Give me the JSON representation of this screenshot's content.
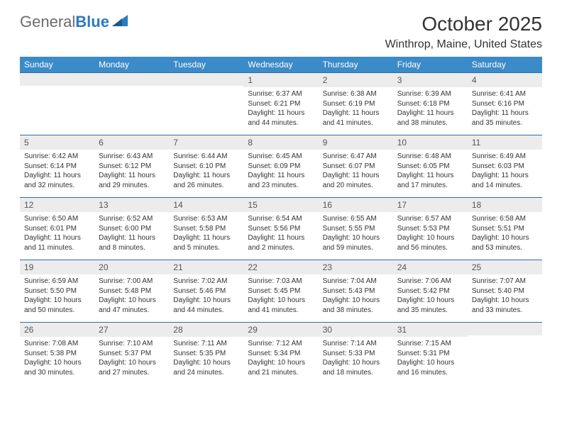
{
  "logo": {
    "text1": "General",
    "text2": "Blue"
  },
  "title": "October 2025",
  "location": "Winthrop, Maine, United States",
  "colors": {
    "header_bg": "#3b8bc8",
    "header_border": "#2b6fa3",
    "daynum_bg": "#ececec",
    "logo_gray": "#6b6b6b",
    "logo_blue": "#2b7bbd"
  },
  "day_names": [
    "Sunday",
    "Monday",
    "Tuesday",
    "Wednesday",
    "Thursday",
    "Friday",
    "Saturday"
  ],
  "weeks": [
    [
      {
        "n": "",
        "lines": []
      },
      {
        "n": "",
        "lines": []
      },
      {
        "n": "",
        "lines": []
      },
      {
        "n": "1",
        "lines": [
          "Sunrise: 6:37 AM",
          "Sunset: 6:21 PM",
          "Daylight: 11 hours and 44 minutes."
        ]
      },
      {
        "n": "2",
        "lines": [
          "Sunrise: 6:38 AM",
          "Sunset: 6:19 PM",
          "Daylight: 11 hours and 41 minutes."
        ]
      },
      {
        "n": "3",
        "lines": [
          "Sunrise: 6:39 AM",
          "Sunset: 6:18 PM",
          "Daylight: 11 hours and 38 minutes."
        ]
      },
      {
        "n": "4",
        "lines": [
          "Sunrise: 6:41 AM",
          "Sunset: 6:16 PM",
          "Daylight: 11 hours and 35 minutes."
        ]
      }
    ],
    [
      {
        "n": "5",
        "lines": [
          "Sunrise: 6:42 AM",
          "Sunset: 6:14 PM",
          "Daylight: 11 hours and 32 minutes."
        ]
      },
      {
        "n": "6",
        "lines": [
          "Sunrise: 6:43 AM",
          "Sunset: 6:12 PM",
          "Daylight: 11 hours and 29 minutes."
        ]
      },
      {
        "n": "7",
        "lines": [
          "Sunrise: 6:44 AM",
          "Sunset: 6:10 PM",
          "Daylight: 11 hours and 26 minutes."
        ]
      },
      {
        "n": "8",
        "lines": [
          "Sunrise: 6:45 AM",
          "Sunset: 6:09 PM",
          "Daylight: 11 hours and 23 minutes."
        ]
      },
      {
        "n": "9",
        "lines": [
          "Sunrise: 6:47 AM",
          "Sunset: 6:07 PM",
          "Daylight: 11 hours and 20 minutes."
        ]
      },
      {
        "n": "10",
        "lines": [
          "Sunrise: 6:48 AM",
          "Sunset: 6:05 PM",
          "Daylight: 11 hours and 17 minutes."
        ]
      },
      {
        "n": "11",
        "lines": [
          "Sunrise: 6:49 AM",
          "Sunset: 6:03 PM",
          "Daylight: 11 hours and 14 minutes."
        ]
      }
    ],
    [
      {
        "n": "12",
        "lines": [
          "Sunrise: 6:50 AM",
          "Sunset: 6:01 PM",
          "Daylight: 11 hours and 11 minutes."
        ]
      },
      {
        "n": "13",
        "lines": [
          "Sunrise: 6:52 AM",
          "Sunset: 6:00 PM",
          "Daylight: 11 hours and 8 minutes."
        ]
      },
      {
        "n": "14",
        "lines": [
          "Sunrise: 6:53 AM",
          "Sunset: 5:58 PM",
          "Daylight: 11 hours and 5 minutes."
        ]
      },
      {
        "n": "15",
        "lines": [
          "Sunrise: 6:54 AM",
          "Sunset: 5:56 PM",
          "Daylight: 11 hours and 2 minutes."
        ]
      },
      {
        "n": "16",
        "lines": [
          "Sunrise: 6:55 AM",
          "Sunset: 5:55 PM",
          "Daylight: 10 hours and 59 minutes."
        ]
      },
      {
        "n": "17",
        "lines": [
          "Sunrise: 6:57 AM",
          "Sunset: 5:53 PM",
          "Daylight: 10 hours and 56 minutes."
        ]
      },
      {
        "n": "18",
        "lines": [
          "Sunrise: 6:58 AM",
          "Sunset: 5:51 PM",
          "Daylight: 10 hours and 53 minutes."
        ]
      }
    ],
    [
      {
        "n": "19",
        "lines": [
          "Sunrise: 6:59 AM",
          "Sunset: 5:50 PM",
          "Daylight: 10 hours and 50 minutes."
        ]
      },
      {
        "n": "20",
        "lines": [
          "Sunrise: 7:00 AM",
          "Sunset: 5:48 PM",
          "Daylight: 10 hours and 47 minutes."
        ]
      },
      {
        "n": "21",
        "lines": [
          "Sunrise: 7:02 AM",
          "Sunset: 5:46 PM",
          "Daylight: 10 hours and 44 minutes."
        ]
      },
      {
        "n": "22",
        "lines": [
          "Sunrise: 7:03 AM",
          "Sunset: 5:45 PM",
          "Daylight: 10 hours and 41 minutes."
        ]
      },
      {
        "n": "23",
        "lines": [
          "Sunrise: 7:04 AM",
          "Sunset: 5:43 PM",
          "Daylight: 10 hours and 38 minutes."
        ]
      },
      {
        "n": "24",
        "lines": [
          "Sunrise: 7:06 AM",
          "Sunset: 5:42 PM",
          "Daylight: 10 hours and 35 minutes."
        ]
      },
      {
        "n": "25",
        "lines": [
          "Sunrise: 7:07 AM",
          "Sunset: 5:40 PM",
          "Daylight: 10 hours and 33 minutes."
        ]
      }
    ],
    [
      {
        "n": "26",
        "lines": [
          "Sunrise: 7:08 AM",
          "Sunset: 5:38 PM",
          "Daylight: 10 hours and 30 minutes."
        ]
      },
      {
        "n": "27",
        "lines": [
          "Sunrise: 7:10 AM",
          "Sunset: 5:37 PM",
          "Daylight: 10 hours and 27 minutes."
        ]
      },
      {
        "n": "28",
        "lines": [
          "Sunrise: 7:11 AM",
          "Sunset: 5:35 PM",
          "Daylight: 10 hours and 24 minutes."
        ]
      },
      {
        "n": "29",
        "lines": [
          "Sunrise: 7:12 AM",
          "Sunset: 5:34 PM",
          "Daylight: 10 hours and 21 minutes."
        ]
      },
      {
        "n": "30",
        "lines": [
          "Sunrise: 7:14 AM",
          "Sunset: 5:33 PM",
          "Daylight: 10 hours and 18 minutes."
        ]
      },
      {
        "n": "31",
        "lines": [
          "Sunrise: 7:15 AM",
          "Sunset: 5:31 PM",
          "Daylight: 10 hours and 16 minutes."
        ]
      },
      {
        "n": "",
        "lines": []
      }
    ]
  ]
}
